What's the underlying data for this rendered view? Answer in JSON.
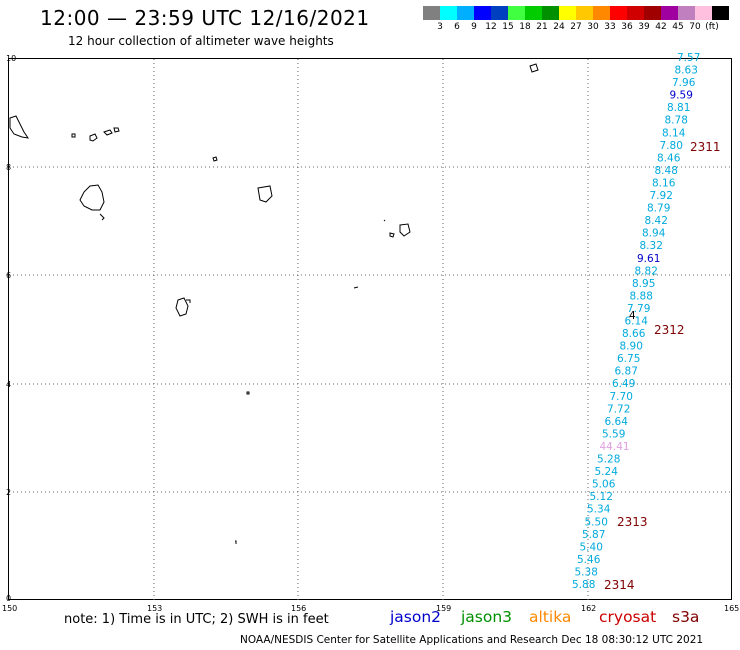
{
  "header": {
    "title": "12:00 — 23:59 UTC 12/16/2021",
    "subtitle": "12 hour collection of altimeter wave heights"
  },
  "legend": {
    "colors": [
      "#808080",
      "#00ffff",
      "#00b0ff",
      "#0000ff",
      "#0040c0",
      "#40ff40",
      "#00cc00",
      "#009000",
      "#ffff00",
      "#ffc800",
      "#ff8800",
      "#ff0000",
      "#d00000",
      "#a00000",
      "#a000a0",
      "#c080c0",
      "#ffc0e0",
      "#000000"
    ],
    "labels": [
      "3",
      "6",
      "9",
      "12",
      "15",
      "18",
      "21",
      "24",
      "27",
      "30",
      "33",
      "36",
      "39",
      "42",
      "45",
      "70",
      "(ft)"
    ]
  },
  "axes": {
    "lat_labels": [
      "10",
      "8",
      "6",
      "4",
      "2",
      "0"
    ],
    "lon_labels": [
      "150",
      "153",
      "156",
      "159",
      "162",
      "165"
    ]
  },
  "wave_heights": [
    {
      "v": "7.57",
      "c": "light"
    },
    {
      "v": "8.63",
      "c": "light"
    },
    {
      "v": "7.96",
      "c": "light"
    },
    {
      "v": "9.59",
      "c": "dark"
    },
    {
      "v": "8.81",
      "c": "light"
    },
    {
      "v": "8.78",
      "c": "light"
    },
    {
      "v": "8.14",
      "c": "light"
    },
    {
      "v": "7.80",
      "c": "light"
    },
    {
      "v": "8.46",
      "c": "light"
    },
    {
      "v": "8.48",
      "c": "light"
    },
    {
      "v": "8.16",
      "c": "light"
    },
    {
      "v": "7.92",
      "c": "light"
    },
    {
      "v": "8.79",
      "c": "light"
    },
    {
      "v": "8.42",
      "c": "light"
    },
    {
      "v": "8.94",
      "c": "light"
    },
    {
      "v": "8.32",
      "c": "light"
    },
    {
      "v": "9.61",
      "c": "dark"
    },
    {
      "v": "8.82",
      "c": "light"
    },
    {
      "v": "8.95",
      "c": "light"
    },
    {
      "v": "8.88",
      "c": "light"
    },
    {
      "v": "7.79",
      "c": "light"
    },
    {
      "v": "6.14",
      "c": "light"
    },
    {
      "v": "8.66",
      "c": "light"
    },
    {
      "v": "8.90",
      "c": "light"
    },
    {
      "v": "6.75",
      "c": "light"
    },
    {
      "v": "6.87",
      "c": "light"
    },
    {
      "v": "6.49",
      "c": "light"
    },
    {
      "v": "7.70",
      "c": "light"
    },
    {
      "v": "7.72",
      "c": "light"
    },
    {
      "v": "6.64",
      "c": "light"
    },
    {
      "v": "5.59",
      "c": "light"
    },
    {
      "v": "44.41",
      "c": "pink"
    },
    {
      "v": "5.28",
      "c": "light"
    },
    {
      "v": "5.24",
      "c": "light"
    },
    {
      "v": "5.06",
      "c": "light"
    },
    {
      "v": "5.12",
      "c": "light"
    },
    {
      "v": "5.34",
      "c": "light"
    },
    {
      "v": "5.50",
      "c": "light"
    },
    {
      "v": "5.87",
      "c": "light"
    },
    {
      "v": "5.40",
      "c": "light"
    },
    {
      "v": "5.46",
      "c": "light"
    },
    {
      "v": "5.38",
      "c": "light"
    },
    {
      "v": "5.88",
      "c": "light"
    }
  ],
  "small_mark": "4",
  "pass_labels": [
    "2311",
    "2312",
    "2313",
    "2314"
  ],
  "footer": {
    "note": "note:  1) Time is in UTC;  2) SWH is in feet",
    "credit": "NOAA/NESDIS Center for Satellite Applications and Research     Dec 18 08:30:12 UTC 2021",
    "satellites": [
      {
        "name": "jason2",
        "color": "#0000cc"
      },
      {
        "name": "jason3",
        "color": "#009000"
      },
      {
        "name": "altika",
        "color": "#ff8800"
      },
      {
        "name": "cryosat",
        "color": "#cc0000"
      },
      {
        "name": "s3a",
        "color": "#800000"
      }
    ]
  }
}
